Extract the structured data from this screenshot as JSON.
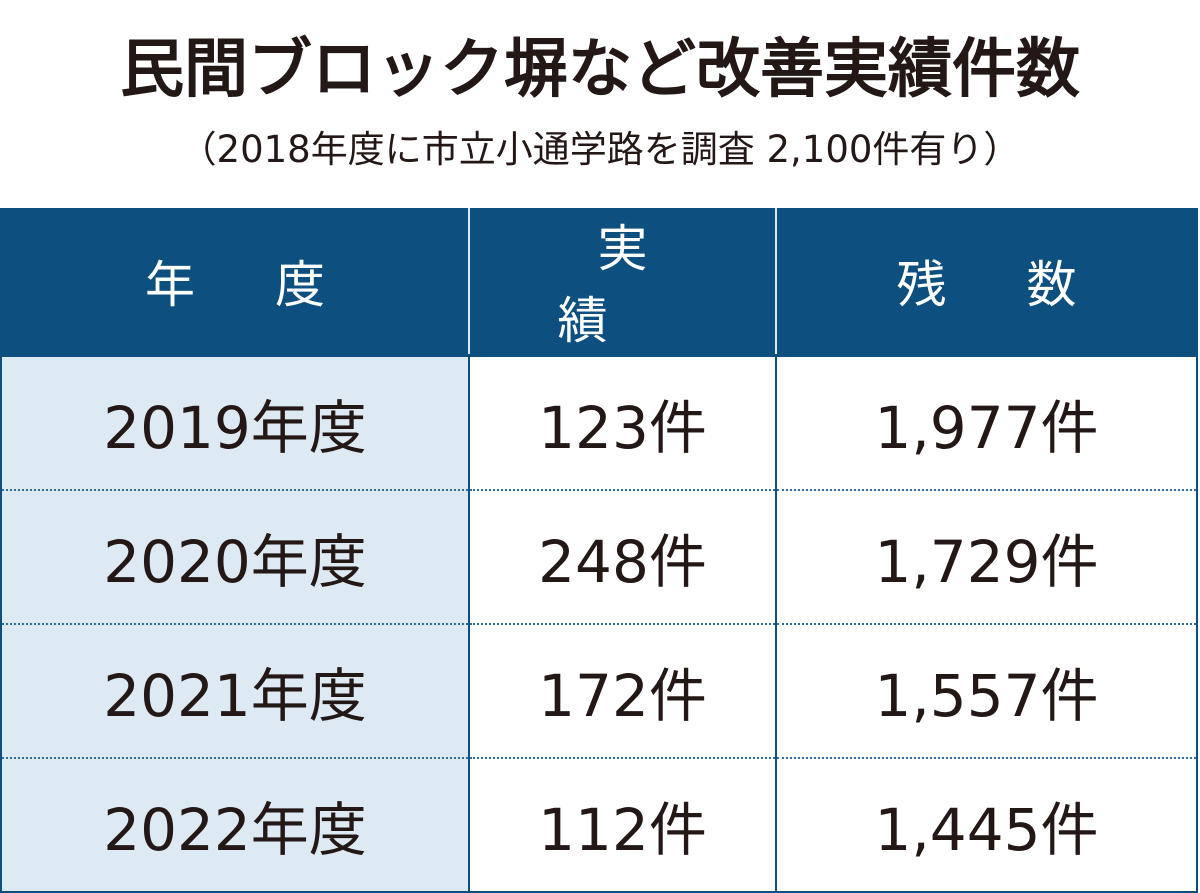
{
  "header": {
    "title": "民間ブロック塀など改善実績件数",
    "subtitle": "（2018年度に市立小通学路を調査 2,100件有り）"
  },
  "table": {
    "columns": [
      "年度",
      "実績",
      "残数"
    ],
    "rows": [
      [
        "2019年度",
        "123件",
        "1,977件"
      ],
      [
        "2020年度",
        "248件",
        "1,729件"
      ],
      [
        "2021年度",
        "172件",
        "1,557件"
      ],
      [
        "2022年度",
        "112件",
        "1,445件"
      ]
    ]
  }
}
